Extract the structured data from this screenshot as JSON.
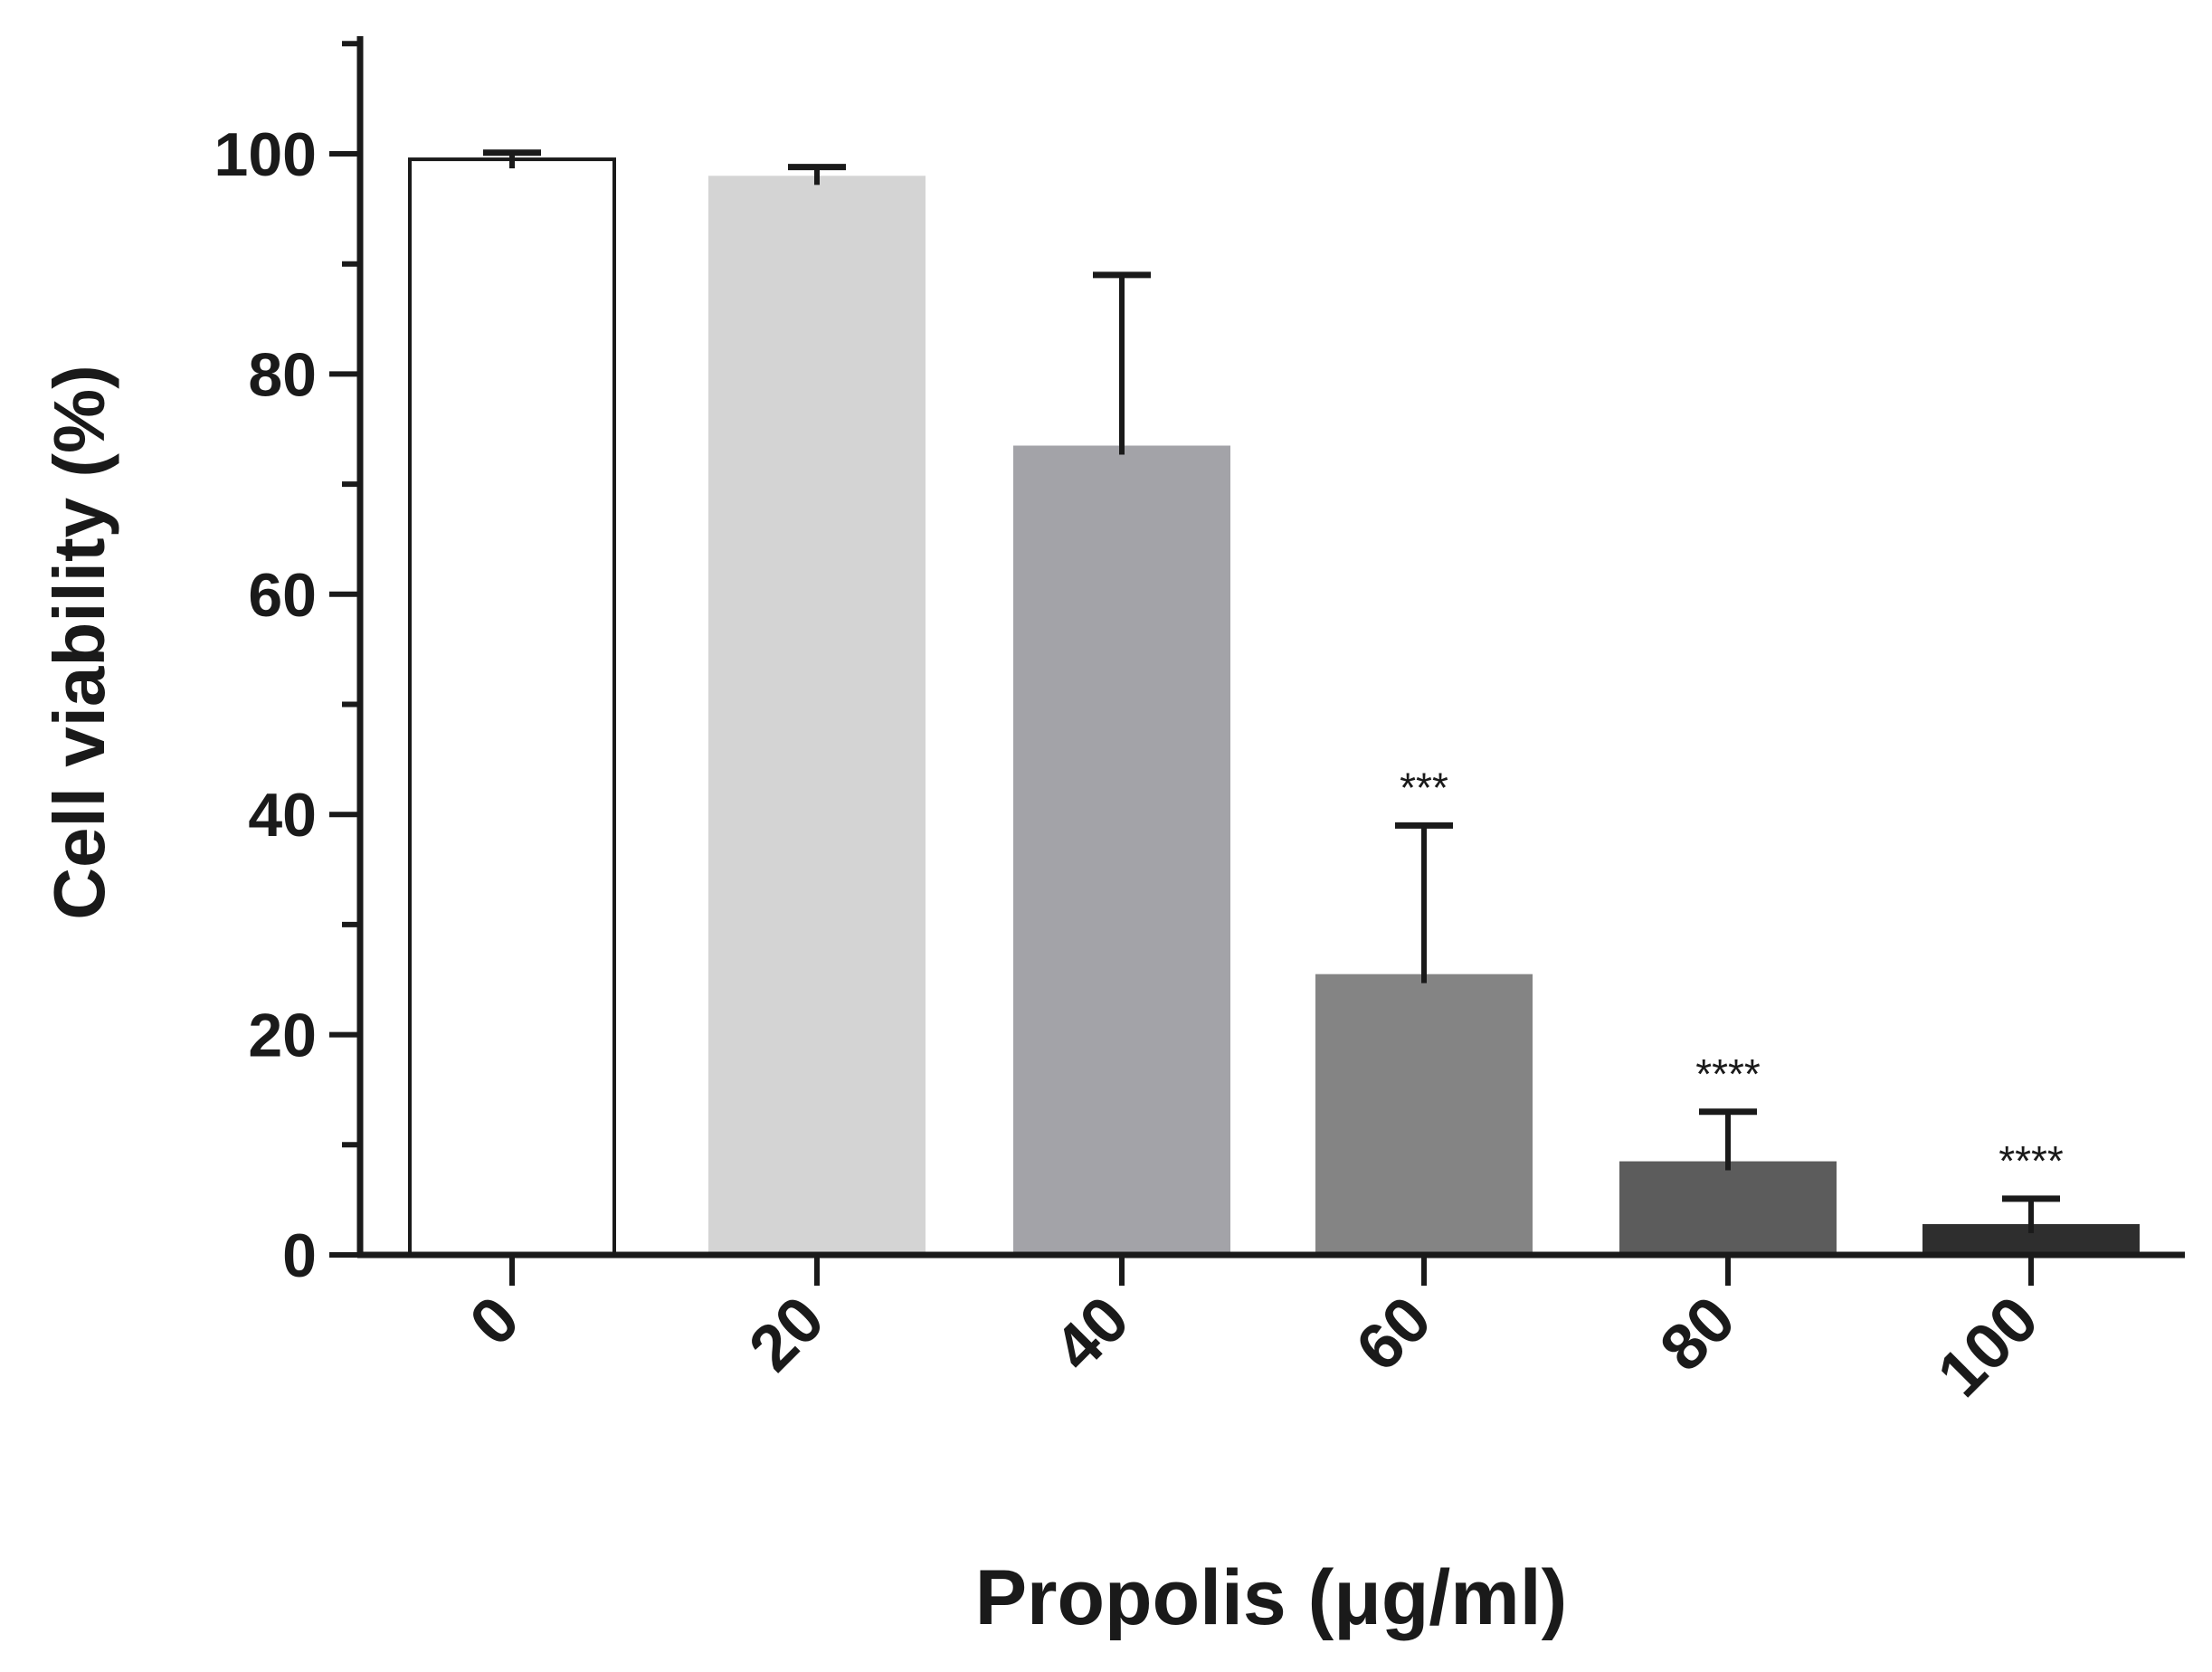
{
  "chart_data": {
    "type": "bar",
    "xlabel": "Propolis (μg/ml)",
    "ylabel": "Cell viability (%)",
    "ylim": [
      0,
      110
    ],
    "y_ticks": [
      0,
      20,
      40,
      60,
      80,
      100
    ],
    "y_minor_step": 10,
    "grid": false,
    "legend": "none",
    "categories": [
      "0",
      "20",
      "40",
      "60",
      "80",
      "100"
    ],
    "values": [
      99.5,
      98,
      73.5,
      25.5,
      8.5,
      2.8
    ],
    "errors": [
      0.6,
      0.8,
      15.5,
      13.5,
      4.5,
      2.3
    ],
    "significance": [
      "",
      "",
      "",
      "***",
      "****",
      "****"
    ],
    "bar_colors": [
      "#ffffff",
      "#d4d4d4",
      "#a3a3a8",
      "#848484",
      "#5c5c5c",
      "#2e2e2e"
    ],
    "axis_color": "#1a1a1a"
  }
}
